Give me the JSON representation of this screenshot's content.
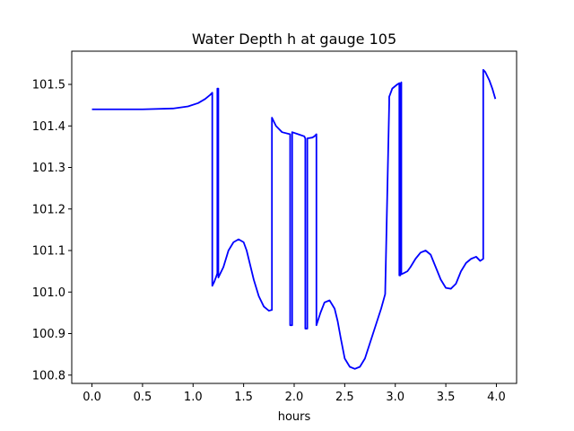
{
  "chart_data": {
    "type": "line",
    "title": "Water Depth h at gauge 105",
    "xlabel": "hours",
    "ylabel": "",
    "xlim": [
      -0.2,
      4.2
    ],
    "ylim": [
      100.78,
      101.58
    ],
    "xticks": [
      {
        "value": 0.0,
        "label": "0.0"
      },
      {
        "value": 0.5,
        "label": "0.5"
      },
      {
        "value": 1.0,
        "label": "1.0"
      },
      {
        "value": 1.5,
        "label": "1.5"
      },
      {
        "value": 2.0,
        "label": "2.0"
      },
      {
        "value": 2.5,
        "label": "2.5"
      },
      {
        "value": 3.0,
        "label": "3.0"
      },
      {
        "value": 3.5,
        "label": "3.5"
      },
      {
        "value": 4.0,
        "label": "4.0"
      }
    ],
    "yticks": [
      {
        "value": 100.8,
        "label": "100.8"
      },
      {
        "value": 100.9,
        "label": "100.9"
      },
      {
        "value": 101.0,
        "label": "101.0"
      },
      {
        "value": 101.1,
        "label": "101.1"
      },
      {
        "value": 101.2,
        "label": "101.2"
      },
      {
        "value": 101.3,
        "label": "101.3"
      },
      {
        "value": 101.4,
        "label": "101.4"
      },
      {
        "value": 101.5,
        "label": "101.5"
      }
    ],
    "grid": false,
    "legend": "none",
    "series": [
      {
        "color": "#0000ff",
        "x": [
          0.0,
          0.5,
          0.8,
          0.95,
          1.05,
          1.12,
          1.17,
          1.19,
          1.19,
          1.21,
          1.23,
          1.24,
          1.24,
          1.25,
          1.25,
          1.3,
          1.35,
          1.4,
          1.45,
          1.5,
          1.53,
          1.56,
          1.6,
          1.65,
          1.7,
          1.75,
          1.78,
          1.78,
          1.82,
          1.88,
          1.96,
          1.96,
          1.98,
          1.98,
          2.04,
          2.1,
          2.11,
          2.11,
          2.13,
          2.13,
          2.18,
          2.2,
          2.22,
          2.22,
          2.26,
          2.3,
          2.35,
          2.4,
          2.43,
          2.46,
          2.5,
          2.55,
          2.6,
          2.65,
          2.7,
          2.74,
          2.78,
          2.82,
          2.86,
          2.9,
          2.94,
          2.94,
          2.97,
          3.02,
          3.04,
          3.04,
          3.05,
          3.05,
          3.06,
          3.06,
          3.08,
          3.12,
          3.15,
          3.2,
          3.25,
          3.3,
          3.35,
          3.4,
          3.45,
          3.5,
          3.55,
          3.6,
          3.65,
          3.7,
          3.75,
          3.8,
          3.84,
          3.87,
          3.87,
          3.89,
          3.93,
          3.96,
          3.99
        ],
        "y": [
          101.44,
          101.44,
          101.442,
          101.447,
          101.455,
          101.465,
          101.475,
          101.48,
          101.015,
          101.025,
          101.038,
          101.045,
          101.49,
          101.49,
          101.035,
          101.06,
          101.1,
          101.12,
          101.127,
          101.12,
          101.1,
          101.07,
          101.03,
          100.99,
          100.965,
          100.955,
          100.957,
          101.42,
          101.4,
          101.385,
          101.38,
          100.92,
          100.92,
          101.385,
          101.38,
          101.375,
          101.37,
          100.912,
          100.912,
          101.37,
          101.372,
          101.375,
          101.38,
          100.92,
          100.95,
          100.975,
          100.98,
          100.96,
          100.93,
          100.89,
          100.84,
          100.82,
          100.815,
          100.82,
          100.84,
          100.87,
          100.9,
          100.93,
          100.96,
          100.995,
          101.455,
          101.47,
          101.49,
          101.5,
          101.503,
          101.04,
          101.04,
          101.5,
          101.505,
          101.043,
          101.045,
          101.05,
          101.06,
          101.08,
          101.095,
          101.1,
          101.09,
          101.06,
          101.03,
          101.01,
          101.008,
          101.02,
          101.05,
          101.07,
          101.08,
          101.085,
          101.075,
          101.08,
          101.535,
          101.53,
          101.51,
          101.49,
          101.465
        ]
      }
    ]
  }
}
